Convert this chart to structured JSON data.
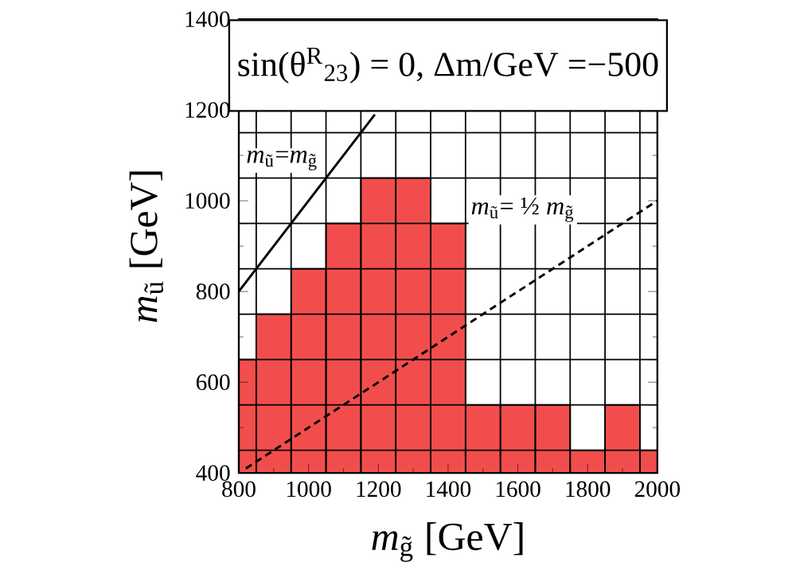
{
  "chart_data": {
    "type": "bar",
    "title": "sin(θ$^{R}$$_{23}$) = 0, Δm/GeV =−500",
    "xlabel": "*m*$_{g̃}$ [GeV]",
    "ylabel": "*m*$_{ũ}$ [GeV]",
    "x": [
      800,
      900,
      1000,
      1100,
      1200,
      1300,
      1400,
      1500,
      1600,
      1700,
      1800,
      1900,
      2000
    ],
    "series": [
      {
        "color": "#f24d4d",
        "values": [
          650,
          750,
          850,
          950,
          1050,
          1050,
          950,
          550,
          550,
          550,
          450,
          550,
          450
        ]
      },
      {
        "type": "line",
        "name": "*m*$_{ũ}$=*m*$_{g̃}$",
        "color": "#000000",
        "line_style": "solid",
        "x": [
          800,
          1190
        ],
        "values": [
          800,
          1190
        ]
      },
      {
        "type": "line",
        "name": "*m*$_{ũ}$= ½ *m*$_{g̃}$",
        "color": "#000000",
        "line_style": "dashed",
        "x": [
          820,
          2000
        ],
        "values": [
          410,
          1000
        ]
      }
    ],
    "xlim": [
      800,
      2000
    ],
    "ylim": [
      400,
      1400
    ],
    "xticks": [
      800,
      {
        "value": 850,
        "label": null
      },
      {
        "value": 950,
        "label": null
      },
      1000,
      {
        "value": 1050,
        "label": null
      },
      {
        "value": 1150,
        "label": null
      },
      1200,
      {
        "value": 1250,
        "label": null
      },
      {
        "value": 1350,
        "label": null
      },
      1400,
      {
        "value": 1450,
        "label": null
      },
      {
        "value": 1550,
        "label": null
      },
      1600,
      {
        "value": 1650,
        "label": null
      },
      {
        "value": 1750,
        "label": null
      },
      1800,
      {
        "value": 1850,
        "label": null
      },
      {
        "value": 1950,
        "label": null
      },
      2000
    ],
    "yticks": [
      400,
      {
        "value": 450,
        "label": null
      },
      {
        "value": 550,
        "label": null
      },
      600,
      {
        "value": 650,
        "label": null
      },
      {
        "value": 750,
        "label": null
      },
      800,
      {
        "value": 850,
        "label": null
      },
      {
        "value": 950,
        "label": null
      },
      1000,
      {
        "value": 1050,
        "label": null
      },
      {
        "value": 1150,
        "label": null
      },
      1200,
      1400
    ],
    "grid": true
  }
}
